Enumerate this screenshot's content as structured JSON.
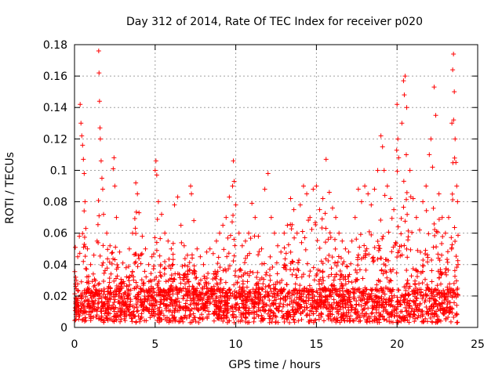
{
  "chart_data": {
    "type": "scatter",
    "title": "Day 312 of 2014, Rate Of TEC Index for receiver p020",
    "xlabel": "GPS time / hours",
    "ylabel": "ROTI / TECUs",
    "xlim": [
      0,
      25
    ],
    "ylim": [
      0,
      0.18
    ],
    "xticks": [
      0,
      5,
      10,
      15,
      20,
      25
    ],
    "xtick_labels": [
      "0",
      "5",
      "10",
      "15",
      "20",
      "25"
    ],
    "yticks": [
      0,
      0.02,
      0.04,
      0.06,
      0.08,
      0.1,
      0.12,
      0.14,
      0.16,
      0.18
    ],
    "ytick_labels": [
      "0",
      "0.02",
      "0.04",
      "0.06",
      "0.08",
      "0.1",
      "0.12",
      "0.14",
      "0.16",
      "0.18"
    ],
    "grid": true,
    "marker": "+",
    "color": "#ff0000",
    "x_range_of_data": [
      0,
      23.8
    ],
    "series": [
      {
        "values": [
          [
            0.05,
            0.051
          ],
          [
            0.1,
            0.03
          ],
          [
            0.2,
            0.045
          ],
          [
            0.3,
            0.058
          ],
          [
            0.35,
            0.142
          ],
          [
            0.4,
            0.13
          ],
          [
            0.45,
            0.122
          ],
          [
            0.5,
            0.116
          ],
          [
            0.55,
            0.107
          ],
          [
            0.6,
            0.098
          ],
          [
            0.65,
            0.08
          ],
          [
            0.7,
            0.063
          ],
          [
            0.8,
            0.05
          ],
          [
            1.0,
            0.04
          ],
          [
            1.2,
            0.046
          ],
          [
            1.4,
            0.055
          ],
          [
            1.5,
            0.176
          ],
          [
            1.52,
            0.162
          ],
          [
            1.55,
            0.144
          ],
          [
            1.58,
            0.127
          ],
          [
            1.6,
            0.12
          ],
          [
            1.65,
            0.106
          ],
          [
            1.7,
            0.095
          ],
          [
            1.75,
            0.088
          ],
          [
            1.8,
            0.072
          ],
          [
            2.0,
            0.06
          ],
          [
            2.2,
            0.052
          ],
          [
            2.4,
            0.101
          ],
          [
            2.45,
            0.108
          ],
          [
            2.5,
            0.09
          ],
          [
            2.6,
            0.07
          ],
          [
            2.8,
            0.048
          ],
          [
            3.0,
            0.041
          ],
          [
            3.2,
            0.038
          ],
          [
            3.4,
            0.05
          ],
          [
            3.6,
            0.06
          ],
          [
            3.8,
            0.092
          ],
          [
            3.9,
            0.085
          ],
          [
            4.0,
            0.073
          ],
          [
            4.2,
            0.058
          ],
          [
            4.4,
            0.05
          ],
          [
            4.6,
            0.04
          ],
          [
            4.8,
            0.045
          ],
          [
            5.0,
            0.1
          ],
          [
            5.05,
            0.106
          ],
          [
            5.1,
            0.097
          ],
          [
            5.2,
            0.08
          ],
          [
            5.4,
            0.072
          ],
          [
            5.6,
            0.06
          ],
          [
            5.8,
            0.055
          ],
          [
            6.0,
            0.05
          ],
          [
            6.2,
            0.078
          ],
          [
            6.4,
            0.083
          ],
          [
            6.6,
            0.065
          ],
          [
            6.8,
            0.052
          ],
          [
            7.0,
            0.046
          ],
          [
            7.2,
            0.09
          ],
          [
            7.25,
            0.085
          ],
          [
            7.4,
            0.068
          ],
          [
            7.6,
            0.05
          ],
          [
            7.8,
            0.045
          ],
          [
            8.0,
            0.04
          ],
          [
            8.2,
            0.048
          ],
          [
            8.4,
            0.05
          ],
          [
            8.6,
            0.047
          ],
          [
            8.8,
            0.055
          ],
          [
            9.0,
            0.06
          ],
          [
            9.2,
            0.065
          ],
          [
            9.4,
            0.07
          ],
          [
            9.6,
            0.083
          ],
          [
            9.8,
            0.09
          ],
          [
            9.85,
            0.106
          ],
          [
            9.9,
            0.093
          ],
          [
            10.0,
            0.078
          ],
          [
            10.2,
            0.06
          ],
          [
            10.4,
            0.052
          ],
          [
            10.6,
            0.055
          ],
          [
            10.8,
            0.06
          ],
          [
            11.0,
            0.079
          ],
          [
            11.2,
            0.07
          ],
          [
            11.4,
            0.058
          ],
          [
            11.6,
            0.05
          ],
          [
            11.8,
            0.088
          ],
          [
            12.0,
            0.098
          ],
          [
            12.2,
            0.07
          ],
          [
            12.4,
            0.06
          ],
          [
            12.6,
            0.052
          ],
          [
            12.8,
            0.048
          ],
          [
            13.0,
            0.06
          ],
          [
            13.2,
            0.065
          ],
          [
            13.4,
            0.082
          ],
          [
            13.6,
            0.075
          ],
          [
            13.8,
            0.06
          ],
          [
            14.0,
            0.078
          ],
          [
            14.2,
            0.09
          ],
          [
            14.4,
            0.085
          ],
          [
            14.6,
            0.07
          ],
          [
            14.8,
            0.088
          ],
          [
            15.0,
            0.09
          ],
          [
            15.2,
            0.075
          ],
          [
            15.4,
            0.082
          ],
          [
            15.6,
            0.107
          ],
          [
            15.8,
            0.086
          ],
          [
            16.0,
            0.076
          ],
          [
            16.2,
            0.07
          ],
          [
            16.4,
            0.06
          ],
          [
            16.6,
            0.055
          ],
          [
            16.8,
            0.05
          ],
          [
            17.0,
            0.048
          ],
          [
            17.2,
            0.055
          ],
          [
            17.4,
            0.07
          ],
          [
            17.6,
            0.088
          ],
          [
            17.8,
            0.08
          ],
          [
            18.0,
            0.09
          ],
          [
            18.2,
            0.085
          ],
          [
            18.4,
            0.078
          ],
          [
            18.6,
            0.088
          ],
          [
            18.8,
            0.1
          ],
          [
            19.0,
            0.122
          ],
          [
            19.1,
            0.115
          ],
          [
            19.2,
            0.1
          ],
          [
            19.4,
            0.09
          ],
          [
            19.6,
            0.082
          ],
          [
            19.8,
            0.075
          ],
          [
            20.0,
            0.142
          ],
          [
            20.05,
            0.12
          ],
          [
            20.1,
            0.108
          ],
          [
            20.3,
            0.13
          ],
          [
            20.4,
            0.157
          ],
          [
            20.45,
            0.148
          ],
          [
            20.5,
            0.16
          ],
          [
            20.6,
            0.14
          ],
          [
            20.8,
            0.1
          ],
          [
            21.0,
            0.082
          ],
          [
            21.2,
            0.07
          ],
          [
            21.4,
            0.062
          ],
          [
            21.6,
            0.08
          ],
          [
            21.8,
            0.09
          ],
          [
            22.0,
            0.11
          ],
          [
            22.1,
            0.12
          ],
          [
            22.2,
            0.102
          ],
          [
            22.3,
            0.153
          ],
          [
            22.4,
            0.135
          ],
          [
            22.6,
            0.085
          ],
          [
            22.8,
            0.07
          ],
          [
            23.0,
            0.06
          ],
          [
            23.2,
            0.07
          ],
          [
            23.4,
            0.13
          ],
          [
            23.45,
            0.164
          ],
          [
            23.5,
            0.174
          ],
          [
            23.55,
            0.15
          ],
          [
            23.6,
            0.12
          ],
          [
            23.65,
            0.105
          ],
          [
            23.7,
            0.09
          ],
          [
            23.75,
            0.08
          ]
        ]
      }
    ]
  }
}
